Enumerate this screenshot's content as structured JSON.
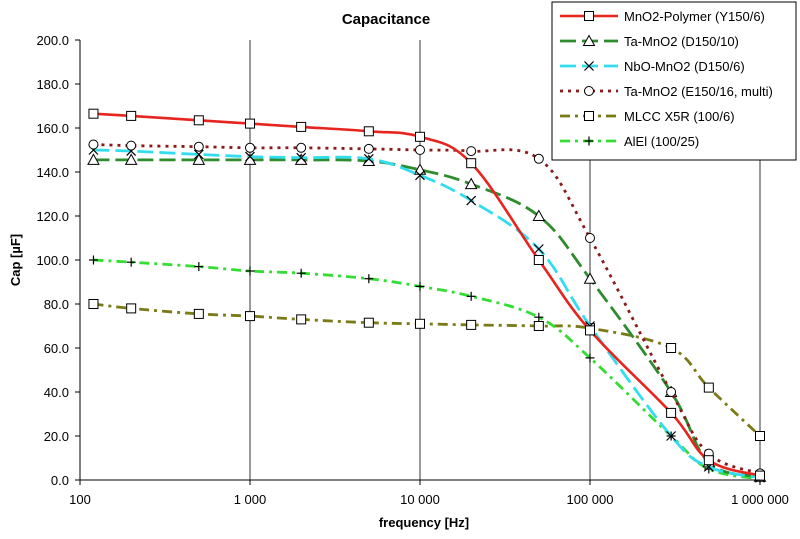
{
  "chart_data": {
    "type": "line",
    "title": "Capacitance",
    "xlabel": "frequency [Hz]",
    "ylabel": "Cap [µF]",
    "xscale": "log",
    "xlim": [
      100,
      1000000
    ],
    "ylim": [
      0,
      200
    ],
    "grid": "vertical",
    "legend_position": "top-right",
    "x_tick_labels": [
      "100",
      "1 000",
      "10 000",
      "100 000",
      "1 000 000"
    ],
    "y_tick_labels": [
      "0.0",
      "20.0",
      "40.0",
      "60.0",
      "80.0",
      "100.0",
      "120.0",
      "140.0",
      "160.0",
      "180.0",
      "200.0"
    ],
    "series": [
      {
        "name": "MnO2-Polymer (Y150/6)",
        "color": "#e8241f",
        "dash": "solid",
        "marker": "square",
        "x": [
          120,
          200,
          500,
          1000,
          2000,
          5000,
          10000,
          20000,
          50000,
          100000,
          300000,
          500000,
          1000000
        ],
        "y": [
          166.5,
          165.5,
          163.5,
          162,
          160.5,
          158.5,
          156,
          144,
          100,
          68,
          30.5,
          9,
          2
        ]
      },
      {
        "name": "Ta-MnO2 (D150/10)",
        "color": "#2e8b2e",
        "dash": "long-dash",
        "marker": "triangle",
        "x": [
          120,
          200,
          500,
          1000,
          2000,
          5000,
          10000,
          20000,
          50000,
          100000,
          300000,
          500000,
          1000000
        ],
        "y": [
          145.5,
          145.5,
          145.5,
          145.5,
          145.5,
          145,
          141,
          134.5,
          120,
          91.5,
          40,
          8,
          1.5
        ]
      },
      {
        "name": "NbO-MnO2 (D150/6)",
        "color": "#33ddee",
        "dash": "long-dash",
        "marker": "x",
        "x": [
          120,
          200,
          500,
          1000,
          2000,
          5000,
          10000,
          20000,
          50000,
          100000,
          300000,
          500000,
          1000000
        ],
        "y": [
          150,
          149.5,
          148,
          147,
          146.5,
          146,
          138.5,
          127,
          105,
          70,
          20,
          6,
          1
        ]
      },
      {
        "name": "Ta-MnO2 (E150/16, multi)",
        "color": "#8b1a1a",
        "dash": "dot",
        "marker": "circle",
        "x": [
          120,
          200,
          500,
          1000,
          2000,
          5000,
          10000,
          20000,
          50000,
          100000,
          300000,
          500000,
          1000000
        ],
        "y": [
          152.5,
          152,
          151.5,
          151,
          151,
          150.5,
          150,
          149.5,
          146,
          110,
          40,
          12,
          3
        ]
      },
      {
        "name": "MLCC X5R (100/6)",
        "color": "#7a7a16",
        "dash": "dash-dot",
        "marker": "square",
        "x": [
          120,
          200,
          500,
          1000,
          2000,
          5000,
          10000,
          20000,
          50000,
          100000,
          300000,
          500000,
          1000000
        ],
        "y": [
          80,
          78,
          75.5,
          74.5,
          73,
          71.5,
          71,
          70.5,
          70,
          69,
          60,
          42,
          20
        ]
      },
      {
        "name": "AlEl (100/25)",
        "color": "#33dd33",
        "dash": "dash-dot",
        "marker": "plus",
        "x": [
          120,
          200,
          500,
          1000,
          2000,
          5000,
          10000,
          20000,
          50000,
          100000,
          300000,
          500000,
          1000000
        ],
        "y": [
          100,
          99,
          97,
          95,
          94,
          91.5,
          88,
          83.5,
          74,
          55.5,
          20,
          5,
          0.5
        ]
      }
    ]
  }
}
